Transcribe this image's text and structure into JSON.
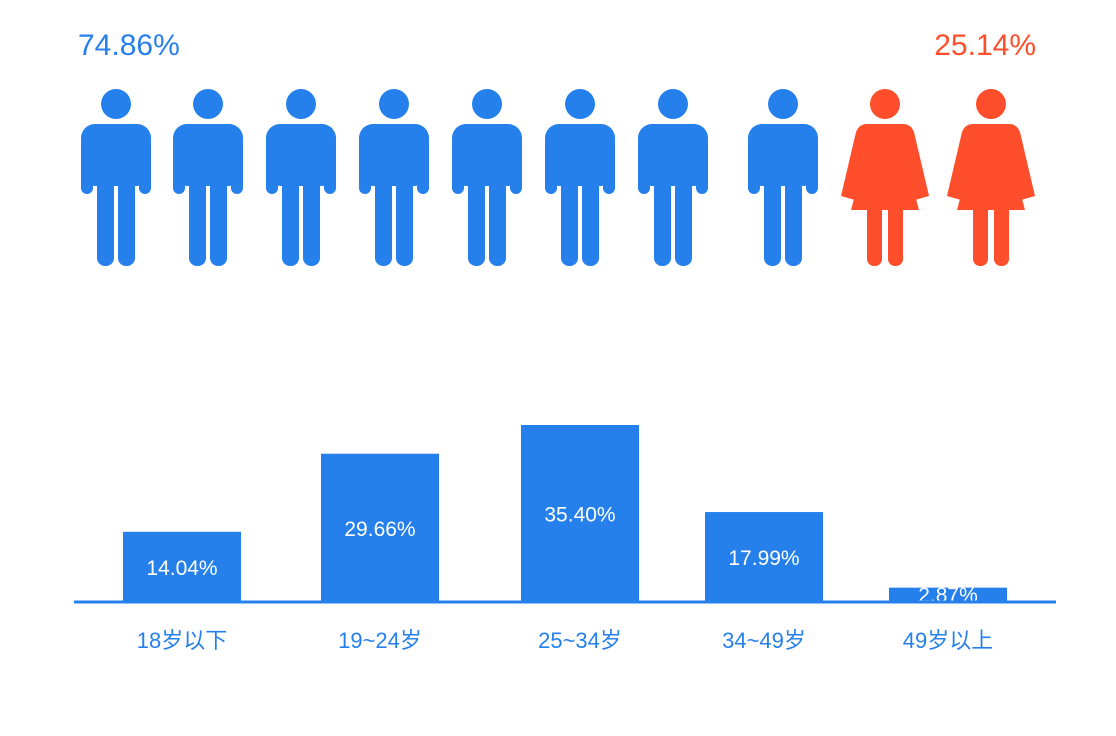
{
  "gender": {
    "male_percent": "74.86%",
    "female_percent": "25.14%",
    "male_share": 0.7486,
    "icon_count": 10,
    "male_color": "#2680eb",
    "female_color": "#ff4e2b"
  },
  "chart_data": {
    "type": "bar",
    "categories": [
      "18岁以下",
      "19~24岁",
      "25~34岁",
      "34~49岁",
      "49岁以上"
    ],
    "values": [
      14.04,
      29.66,
      35.4,
      17.99,
      2.87
    ],
    "value_labels": [
      "14.04%",
      "29.66%",
      "35.40%",
      "17.99%",
      "2.87%"
    ],
    "title": "",
    "xlabel": "",
    "ylabel": "",
    "ylim": [
      0,
      35.4
    ],
    "grid": false,
    "legend": "none",
    "bar_color": "#2680eb",
    "label_color": "#2680eb"
  }
}
